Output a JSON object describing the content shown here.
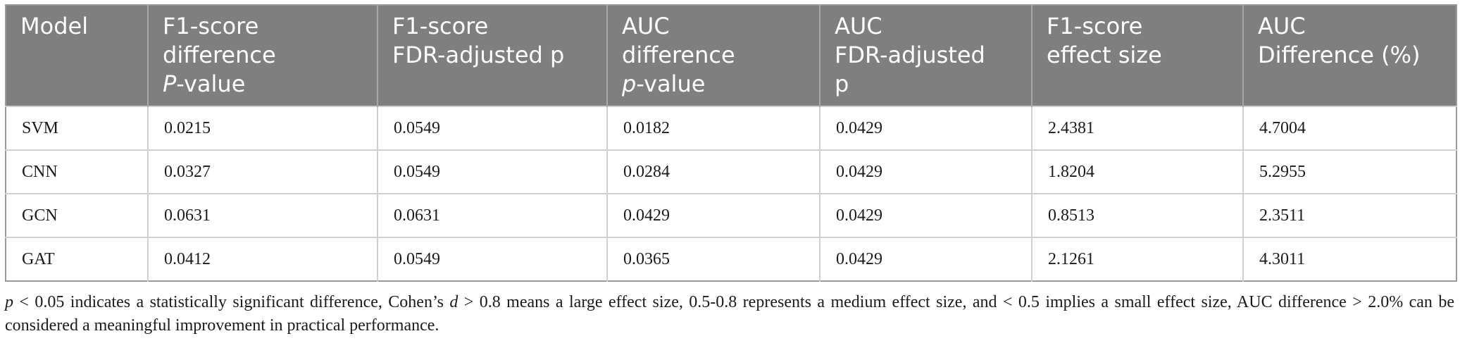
{
  "table": {
    "headers": [
      {
        "parts": [
          {
            "text": "Model"
          }
        ]
      },
      {
        "parts": [
          {
            "text": "F1-score"
          },
          {
            "text": "difference"
          },
          {
            "text": "P",
            "italic": true,
            "suffix": "-value"
          }
        ]
      },
      {
        "parts": [
          {
            "text": "F1-score"
          },
          {
            "text": "FDR-adjusted p"
          }
        ]
      },
      {
        "parts": [
          {
            "text": "AUC"
          },
          {
            "text": "difference"
          },
          {
            "text": "p",
            "italic": true,
            "suffix": "-value"
          }
        ]
      },
      {
        "parts": [
          {
            "text": "AUC"
          },
          {
            "text": "FDR-adjusted"
          },
          {
            "text": "p"
          }
        ]
      },
      {
        "parts": [
          {
            "text": "F1-score"
          },
          {
            "text": "effect size"
          }
        ]
      },
      {
        "parts": [
          {
            "text": "AUC"
          },
          {
            "text": "Difference (%)"
          }
        ]
      }
    ],
    "rows": [
      [
        "SVM",
        "0.0215",
        "0.0549",
        "0.0182",
        "0.0429",
        "2.4381",
        "4.7004"
      ],
      [
        "CNN",
        "0.0327",
        "0.0549",
        "0.0284",
        "0.0429",
        "1.8204",
        "5.2955"
      ],
      [
        "GCN",
        "0.0631",
        "0.0631",
        "0.0429",
        "0.0429",
        "0.8513",
        "2.3511"
      ],
      [
        "GAT",
        "0.0412",
        "0.0549",
        "0.0365",
        "0.0429",
        "2.1261",
        "4.3011"
      ]
    ]
  },
  "footnote": {
    "p": "p",
    "seg1": " < 0.05 indicates a statistically significant difference, Cohen’s ",
    "d": "d",
    "seg2": " > 0.8 means a large effect size, 0.5-0.8 represents a medium effect size, and < 0.5 implies a small effect size, AUC difference > 2.0% can be considered a meaningful improvement in practical performance."
  }
}
